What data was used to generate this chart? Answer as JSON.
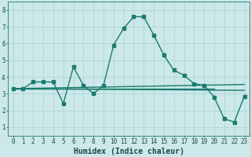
{
  "xlabel": "Humidex (Indice chaleur)",
  "bg_color": "#cce8e8",
  "line_color": "#1a7a6e",
  "xlim": [
    -0.5,
    23.5
  ],
  "ylim": [
    0.5,
    8.5
  ],
  "yticks": [
    1,
    2,
    3,
    4,
    5,
    6,
    7,
    8
  ],
  "xticks": [
    0,
    1,
    2,
    3,
    4,
    5,
    6,
    7,
    8,
    9,
    10,
    11,
    12,
    13,
    14,
    15,
    16,
    17,
    18,
    19,
    20,
    21,
    22,
    23
  ],
  "series1_x": [
    0,
    1,
    2,
    3,
    4,
    5,
    6,
    7,
    8,
    9,
    10,
    11,
    12,
    13,
    14,
    15,
    16,
    17,
    18,
    19,
    20,
    21,
    22,
    23
  ],
  "series1_y": [
    3.3,
    3.3,
    3.7,
    3.7,
    3.7,
    2.4,
    4.6,
    3.5,
    3.0,
    3.5,
    5.9,
    6.9,
    7.6,
    7.6,
    6.5,
    5.3,
    4.4,
    4.1,
    3.6,
    3.5,
    2.8,
    1.5,
    1.3,
    2.85
  ],
  "series2_x": [
    0,
    23
  ],
  "series2_y": [
    3.3,
    3.55
  ],
  "series3_x": [
    0,
    20
  ],
  "series3_y": [
    3.3,
    3.3
  ],
  "series4_x": [
    0,
    23
  ],
  "series4_y": [
    3.3,
    3.2
  ],
  "grid_color": "#a8d4d4",
  "line_width": 1.0,
  "marker_size": 2.5,
  "xlabel_fontsize": 7,
  "tick_fontsize": 5.5
}
